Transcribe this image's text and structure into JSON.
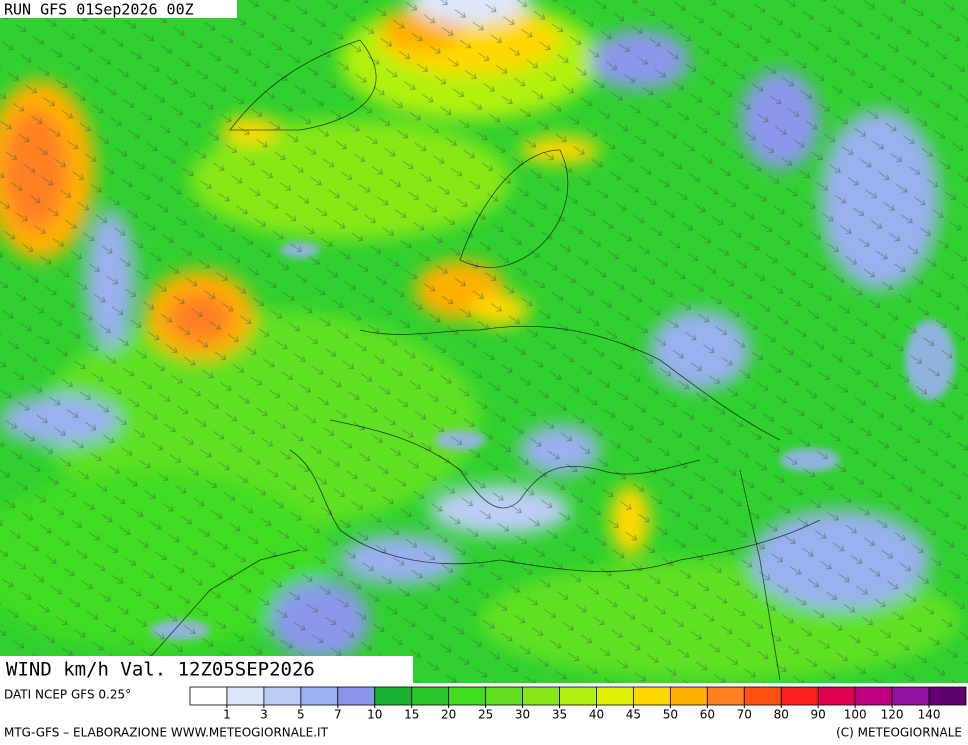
{
  "header": {
    "run": "RUN GFS 01Sep2026 00Z"
  },
  "map": {
    "label": "WIND km/h Val. 12Z05SEP2026"
  },
  "legend": {
    "source": "DATI NCEP GFS 0.25°",
    "ticks": [
      1,
      3,
      5,
      7,
      10,
      15,
      20,
      25,
      30,
      35,
      40,
      45,
      50,
      60,
      70,
      80,
      90,
      100,
      120,
      140
    ],
    "colors": [
      "#ffffff",
      "#dde6fb",
      "#bccdf5",
      "#9ab0ef",
      "#8a96ea",
      "#18b030",
      "#28c828",
      "#40dc20",
      "#60e020",
      "#88e818",
      "#b0f010",
      "#e0f000",
      "#ffd800",
      "#ffb000",
      "#ff8020",
      "#ff5010",
      "#ff2020",
      "#e00050",
      "#c00080",
      "#9010a0",
      "#600070"
    ]
  },
  "footer": {
    "left": "MTG-GFS – ELABORAZIONE WWW.METEOGIORNALE.IT",
    "right": "(C) METEOGIORNALE"
  }
}
